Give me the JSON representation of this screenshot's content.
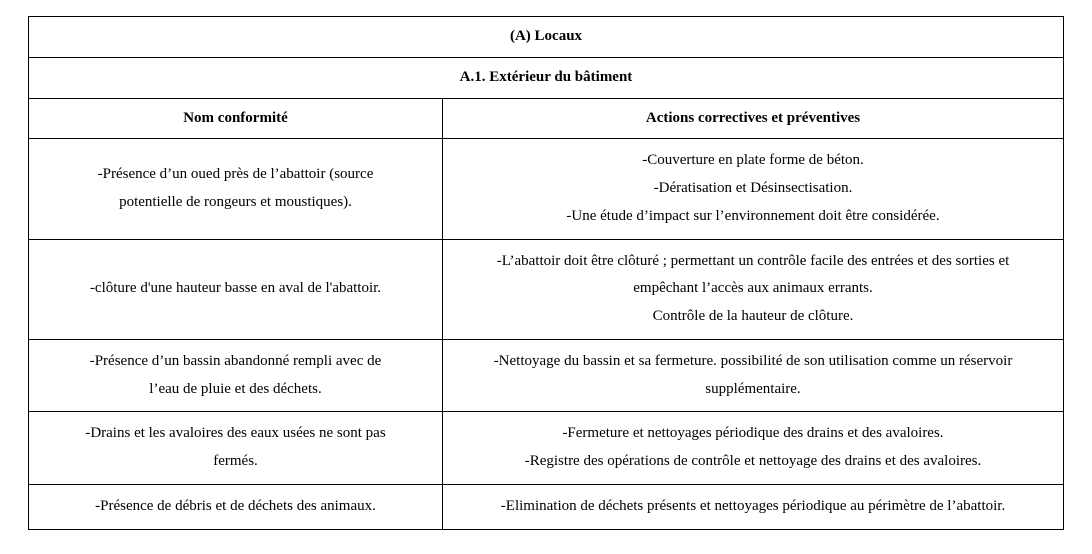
{
  "table": {
    "section_title": "(A) Locaux",
    "subsection_title": "A.1. Extérieur du bâtiment",
    "columns": {
      "left": "Nom conformité",
      "right": "Actions correctives et préventives"
    },
    "rows": [
      {
        "left_lines": [
          "-Présence d’un oued près de l’abattoir (source",
          "potentielle de rongeurs et moustiques)."
        ],
        "right_lines": [
          "-Couverture en plate forme de béton.",
          "-Dératisation et Désinsectisation.",
          "-Une étude d’impact sur l’environnement doit être considérée."
        ]
      },
      {
        "left_lines": [
          "-clôture d'une hauteur basse en aval de l'abattoir."
        ],
        "right_lines": [
          "-L’abattoir doit être clôturé ; permettant un contrôle facile des entrées et des sorties et",
          "empêchant l’accès aux animaux errants.",
          "Contrôle de la hauteur de clôture."
        ]
      },
      {
        "left_lines": [
          "-Présence d’un bassin abandonné rempli avec de",
          "l’eau de pluie et des déchets."
        ],
        "right_lines": [
          "-Nettoyage du bassin et sa fermeture. possibilité de son utilisation comme un réservoir",
          "supplémentaire."
        ]
      },
      {
        "left_lines": [
          "-Drains et les avaloires des eaux usées ne sont pas",
          "fermés."
        ],
        "right_lines": [
          "-Fermeture et nettoyages périodique des drains et des avaloires.",
          "-Registre des opérations de contrôle et nettoyage des drains et des avaloires."
        ]
      },
      {
        "left_lines": [
          "-Présence de débris et de déchets des animaux."
        ],
        "right_lines": [
          "-Elimination de déchets présents et nettoyages périodique au périmètre de l’abattoir."
        ]
      }
    ],
    "style": {
      "font_family": "Times New Roman",
      "font_size_pt": 11,
      "border_color": "#000000",
      "background_color": "#ffffff",
      "text_color": "#000000",
      "col_widths_percent": [
        40,
        60
      ],
      "line_height": 1.85
    }
  }
}
